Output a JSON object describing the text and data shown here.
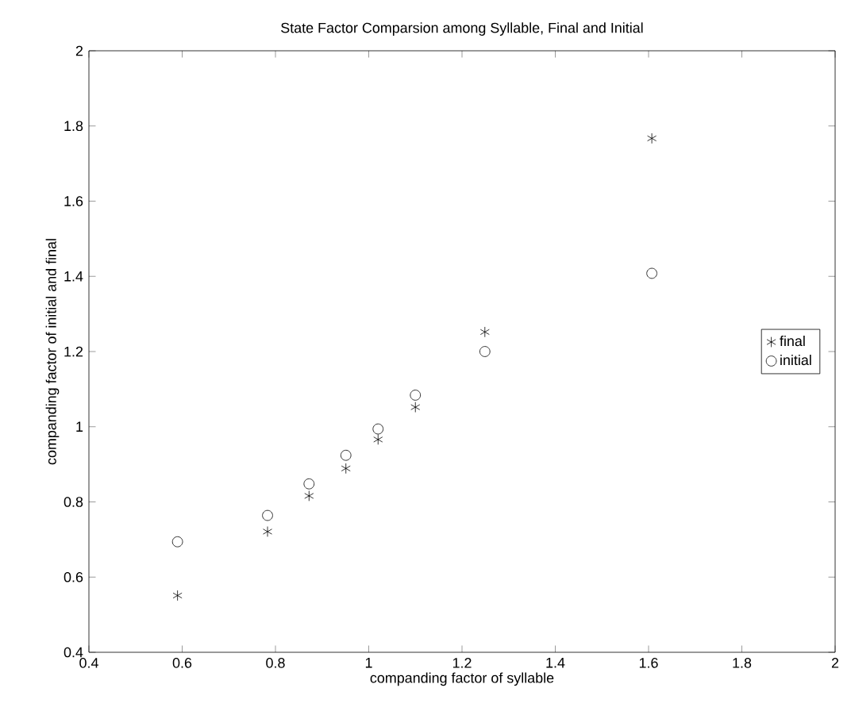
{
  "chart_data": {
    "type": "scatter",
    "title": "State Factor Comparsion among Syllable, Final and Initial",
    "xlabel": "companding factor of syllable",
    "ylabel": "companding factor of initial and final",
    "series": [
      {
        "name": "final",
        "color": "#000000",
        "marker": "cross",
        "x": [
          0.59,
          0.783,
          0.872,
          0.951,
          1.02,
          1.1,
          1.249,
          1.607
        ],
        "values": [
          0.551,
          0.721,
          0.816,
          0.889,
          0.966,
          1.052,
          1.252,
          1.767
        ]
      },
      {
        "name": "initial",
        "color": "#000000",
        "marker": "circle",
        "x": [
          0.59,
          0.783,
          0.872,
          0.951,
          1.02,
          1.1,
          1.249,
          1.607
        ],
        "values": [
          0.694,
          0.764,
          0.848,
          0.924,
          0.994,
          1.084,
          1.2,
          1.408
        ]
      }
    ],
    "xlim": [
      0.4,
      2
    ],
    "ylim": [
      0.4,
      2
    ],
    "xticks": [
      0.4,
      0.6,
      0.8,
      1,
      1.2,
      1.4,
      1.6,
      1.8,
      2
    ],
    "yticks": [
      0.4,
      0.6,
      0.8,
      1,
      1.2,
      1.4,
      1.6,
      1.8,
      2
    ],
    "grid": false,
    "legend": "right"
  }
}
